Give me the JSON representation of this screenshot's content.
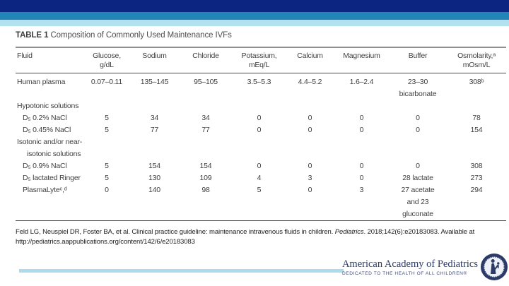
{
  "slide": {
    "title_label": "TABLE 1",
    "title_text": " Composition of Commonly Used Maintenance IVFs"
  },
  "table": {
    "columns": [
      {
        "label": "Fluid",
        "sub": ""
      },
      {
        "label": "Glucose,",
        "sub": "g/dL"
      },
      {
        "label": "Sodium",
        "sub": ""
      },
      {
        "label": "Chloride",
        "sub": ""
      },
      {
        "label": "Potassium,",
        "sub": "mEq/L"
      },
      {
        "label": "Calcium",
        "sub": ""
      },
      {
        "label": "Magnesium",
        "sub": ""
      },
      {
        "label": "Buffer",
        "sub": ""
      },
      {
        "label": "Osmolarity,ᵃ",
        "sub": "mOsm/L"
      }
    ],
    "rows": [
      {
        "section": false,
        "indent": 0,
        "fluid": "Human plasma",
        "values": [
          "0.07–0.11",
          "135–145",
          "95–105",
          "3.5–5.3",
          "4.4–5.2",
          "1.6–2.4",
          "23–30\nbicarbonate",
          "308ᵇ"
        ]
      },
      {
        "section": true,
        "fluid": "Hypotonic solutions"
      },
      {
        "section": false,
        "indent": 1,
        "fluid": "D₅ 0.2% NaCl",
        "values": [
          "5",
          "34",
          "34",
          "0",
          "0",
          "0",
          "0",
          "78"
        ]
      },
      {
        "section": false,
        "indent": 1,
        "fluid": "D₅ 0.45% NaCl",
        "values": [
          "5",
          "77",
          "77",
          "0",
          "0",
          "0",
          "0",
          "154"
        ]
      },
      {
        "section": true,
        "fluid": "Isotonic and/or near-\nisotonic solutions"
      },
      {
        "section": false,
        "indent": 1,
        "fluid": "D₅ 0.9% NaCl",
        "values": [
          "5",
          "154",
          "154",
          "0",
          "0",
          "0",
          "0",
          "308"
        ]
      },
      {
        "section": false,
        "indent": 1,
        "fluid": "D₅ lactated Ringer",
        "values": [
          "5",
          "130",
          "109",
          "4",
          "3",
          "0",
          "28 lactate",
          "273"
        ]
      },
      {
        "section": false,
        "indent": 1,
        "fluid": "PlasmaLyteᶜ,ᵈ",
        "values": [
          "0",
          "140",
          "98",
          "5",
          "0",
          "3",
          "27 acetate\nand 23\ngluconate",
          "294"
        ]
      }
    ]
  },
  "citation": {
    "before": "Feld LG, Neuspiel DR, Foster BA, et al. Clinical practice guideline: maintenance intravenous fluids in children. ",
    "journal": "Pediatrics",
    "after": ". 2018;142(6):e20183083. Available at",
    "url": "http://pediatrics.aappublications.org/content/142/6/e20183083"
  },
  "footer": {
    "org_name": "American Academy of Pediatrics",
    "tagline": "DEDICATED TO THE HEALTH OF ALL CHILDREN®"
  },
  "colors": {
    "top_bar_navy": "#0b2581",
    "top_bar_blue": "#2285b8",
    "top_bar_light": "#b2e1f0",
    "footer_bar": "#a9dcec",
    "logo_navy": "#2b3a66",
    "table_text": "#3f3f3f"
  }
}
